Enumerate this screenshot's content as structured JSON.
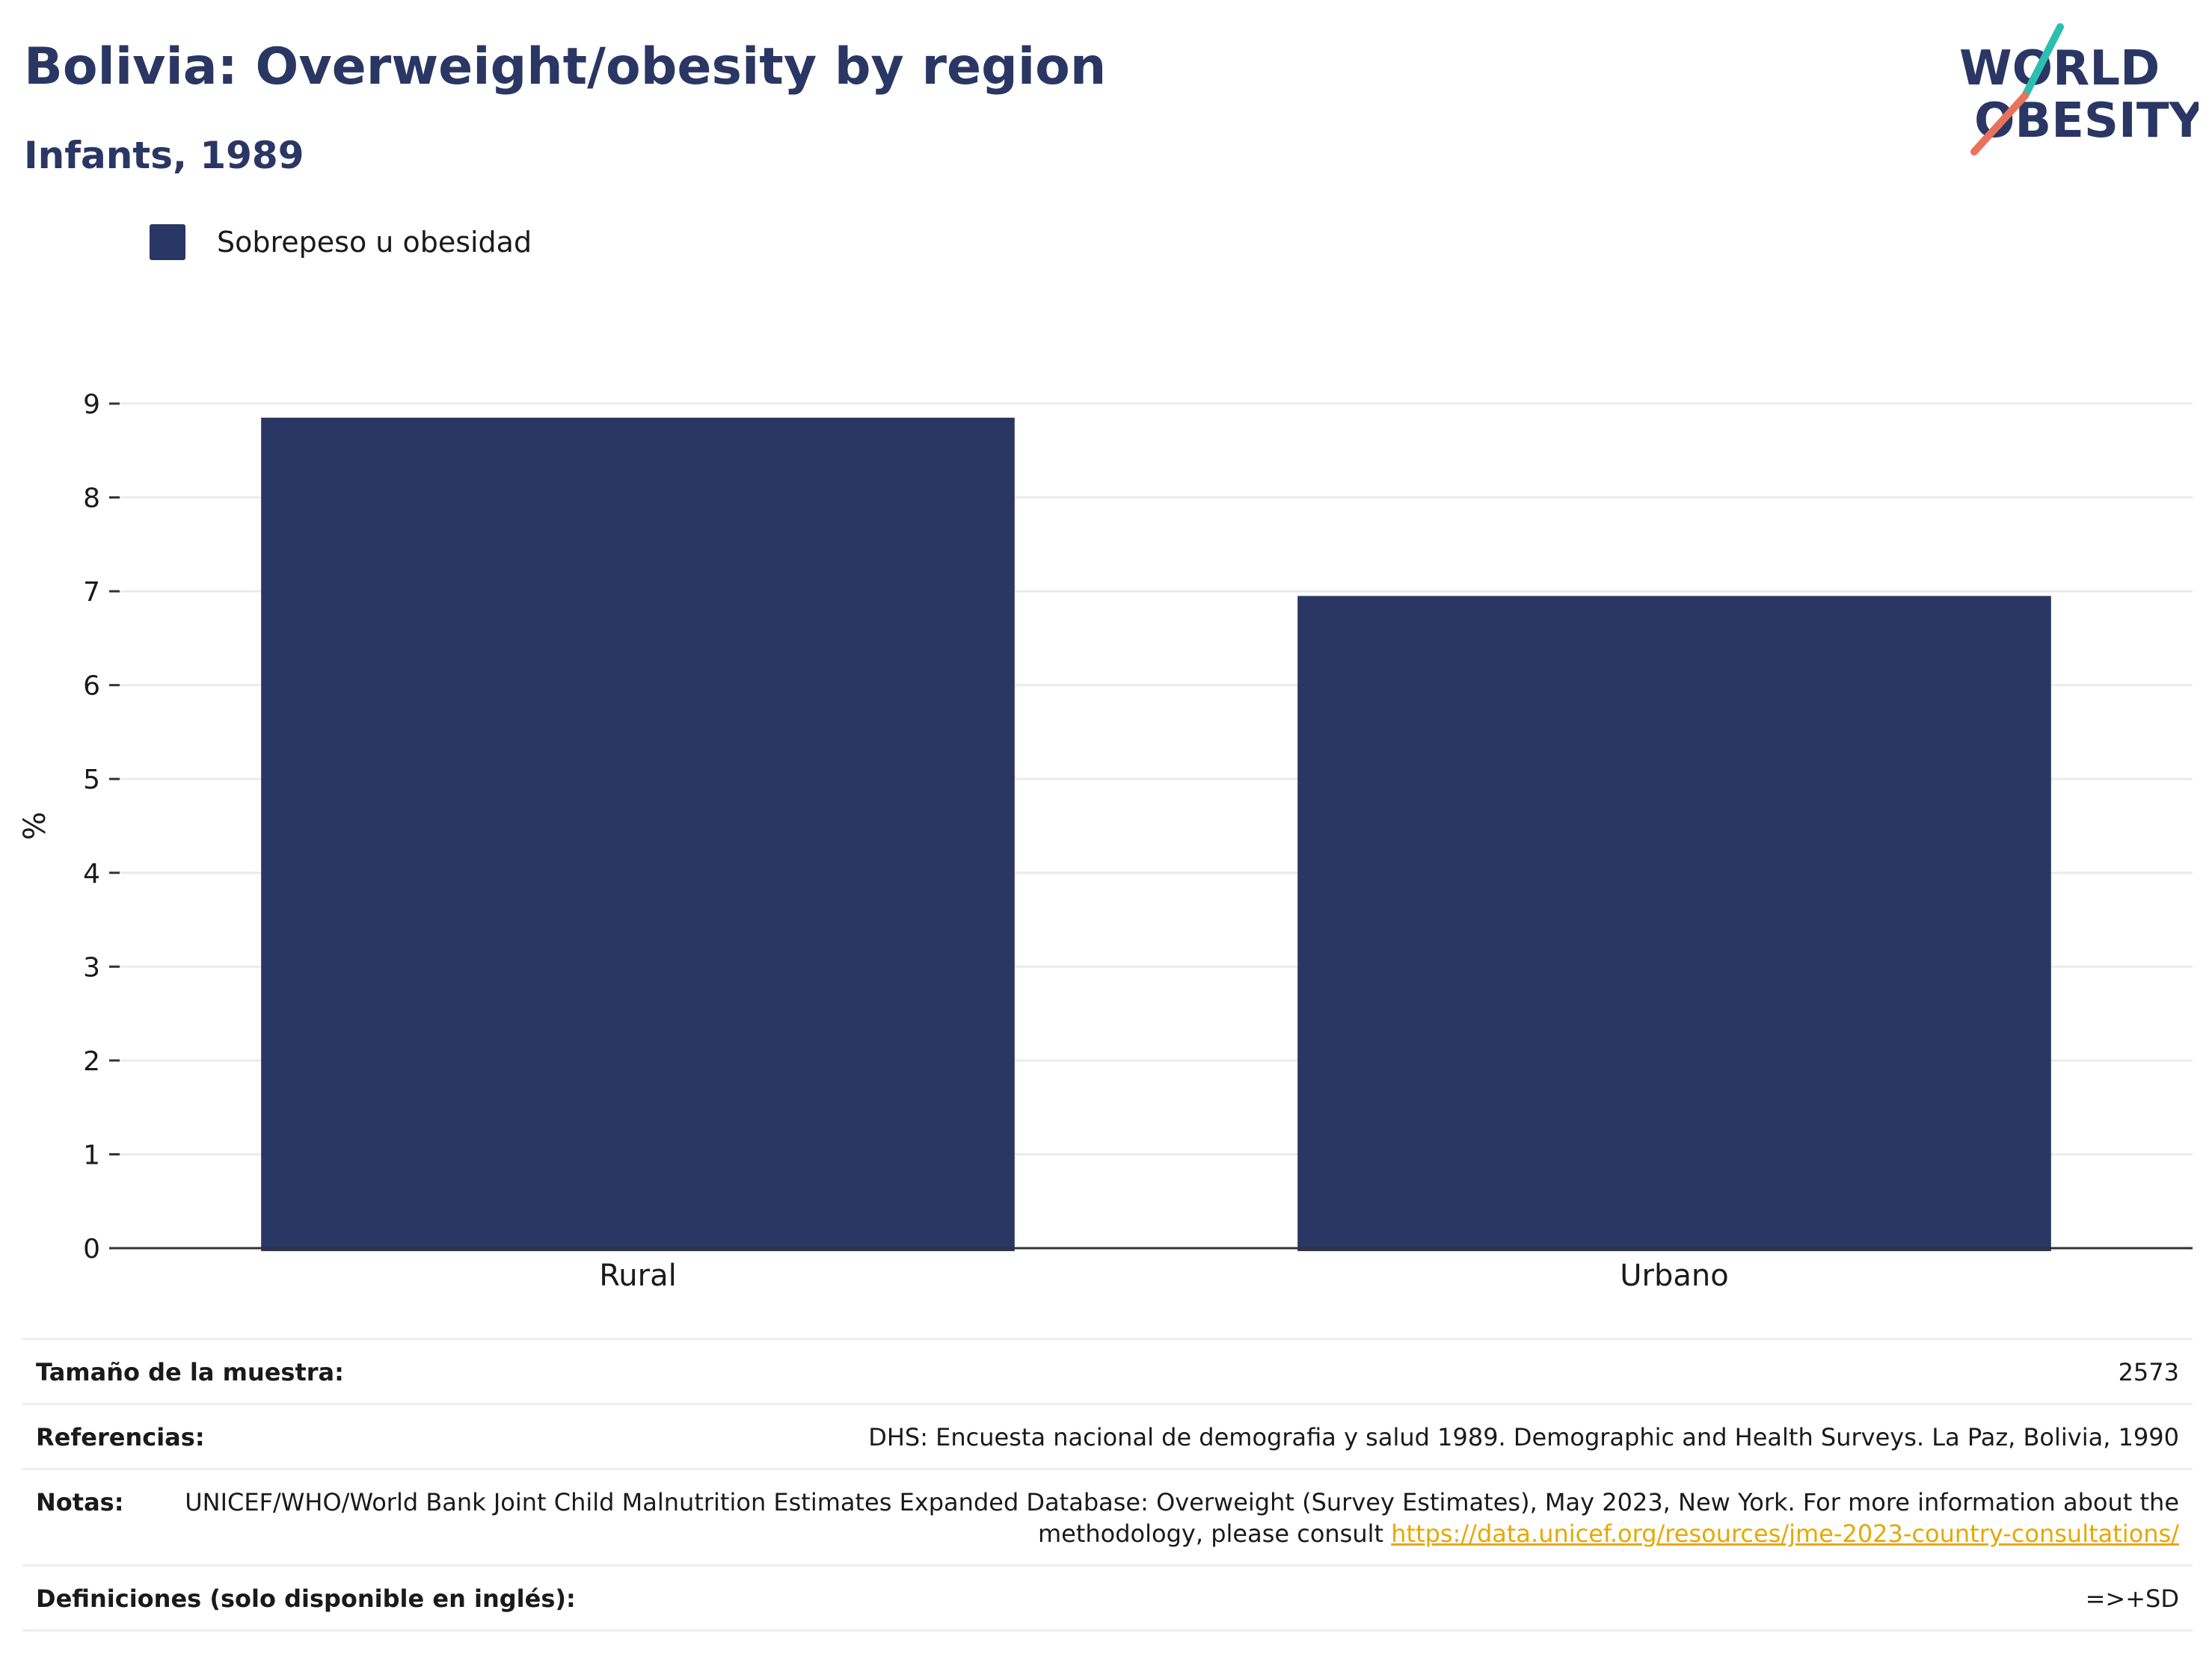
{
  "header": {
    "title": "Bolivia: Overweight/obesity by region",
    "subtitle": "Infants, 1989"
  },
  "logo": {
    "line1": "WORLD",
    "line2": "OBESITY",
    "accent_teal": "#2cbfb0",
    "accent_coral": "#e8735c"
  },
  "legend": {
    "items": [
      {
        "label": "Sobrepeso u obesidad",
        "color": "#2a3663"
      }
    ]
  },
  "chart_data": {
    "type": "bar",
    "categories": [
      "Rural",
      "Urbano"
    ],
    "series": [
      {
        "name": "Sobrepeso u obesidad",
        "values": [
          8.85,
          6.95
        ],
        "color": "#2a3663"
      }
    ],
    "ylabel": "%",
    "xlabel": "",
    "ylim": [
      0,
      9
    ],
    "yticks": [
      0,
      1,
      2,
      3,
      4,
      5,
      6,
      7,
      8,
      9
    ],
    "grid": true,
    "legend_position": "top-left"
  },
  "info": {
    "rows": [
      {
        "key": "Tamaño de la muestra:",
        "value": "2573"
      },
      {
        "key": "Referencias:",
        "value": "DHS: Encuesta nacional de demografia y salud 1989. Demographic and Health Surveys. La Paz, Bolivia, 1990"
      },
      {
        "key": "Notas:",
        "value": "UNICEF/WHO/World Bank Joint Child Malnutrition Estimates Expanded Database: Overweight (Survey Estimates), May 2023, New York. For more information about the methodology, please consult ",
        "link": "https://data.unicef.org/resources/jme-2023-country-consultations/"
      },
      {
        "key": "Definiciones (solo disponible en inglés):",
        "value": "=>+SD"
      }
    ]
  }
}
